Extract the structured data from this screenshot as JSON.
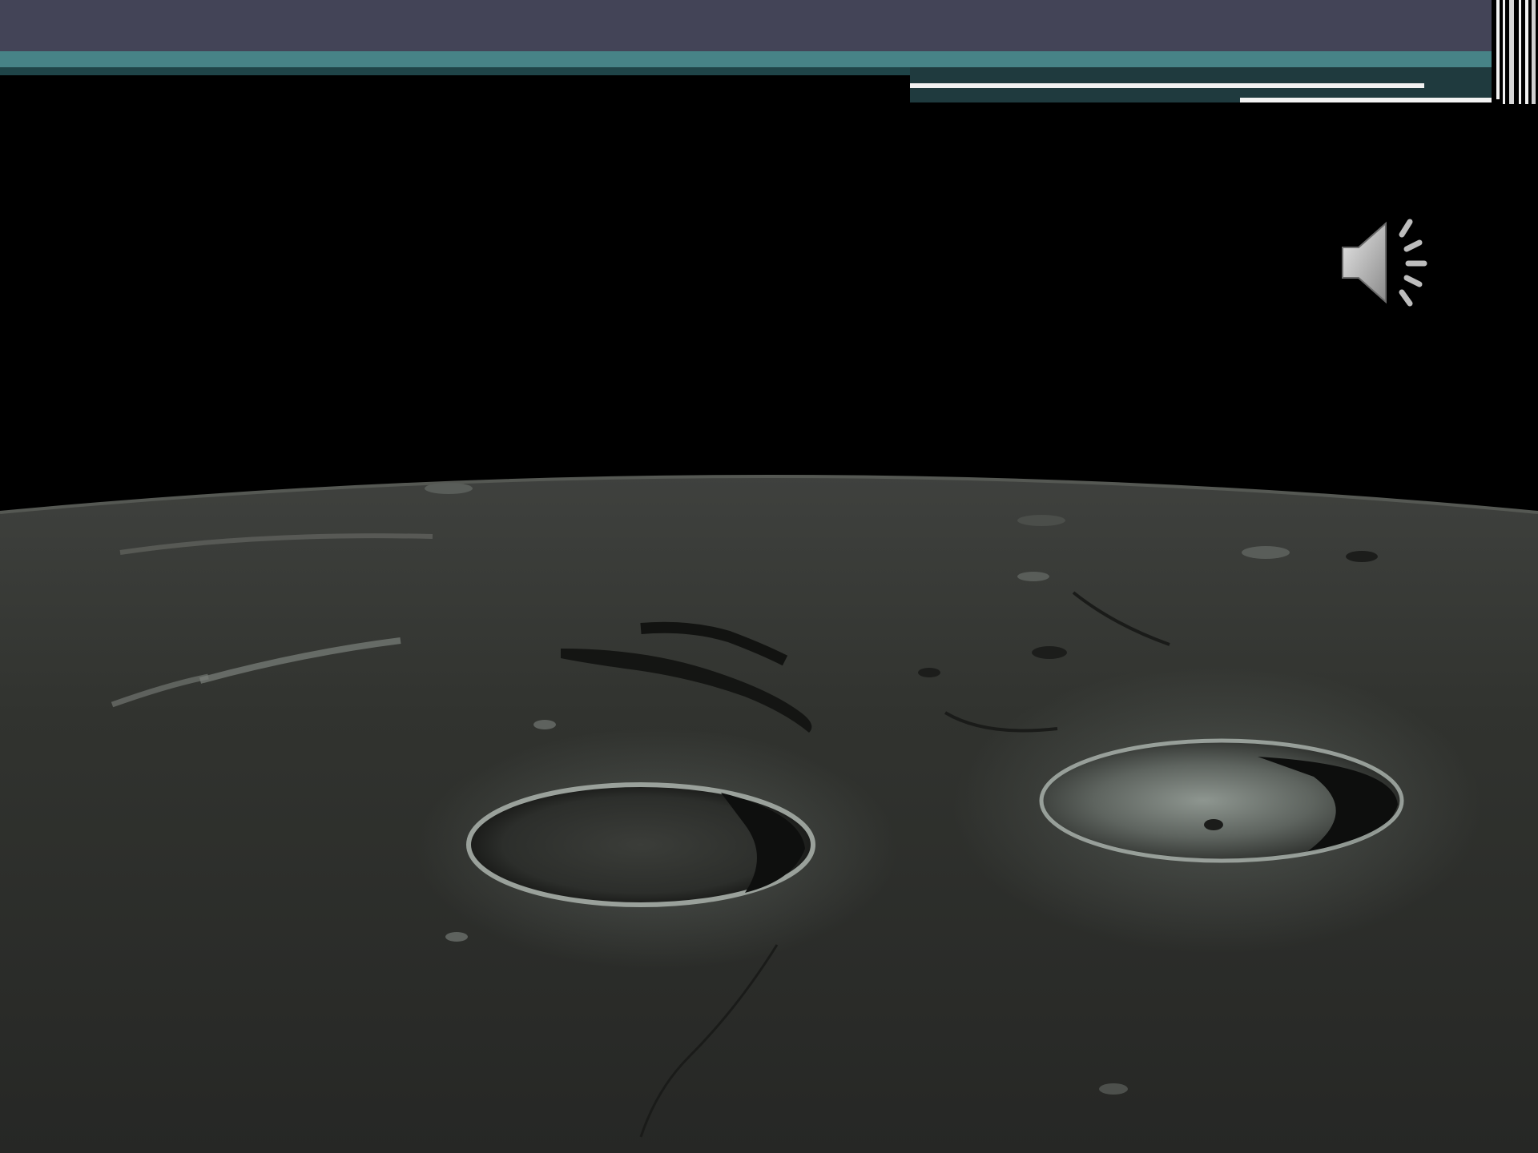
{
  "slide": {
    "background_color": "#000000",
    "header_bar_color": "#434457",
    "accent_band_color": "#478387",
    "rule_color": "#f2f2f2"
  },
  "media": {
    "image_subject": "moon-surface-with-craters",
    "audio_icon": "speaker-icon"
  }
}
